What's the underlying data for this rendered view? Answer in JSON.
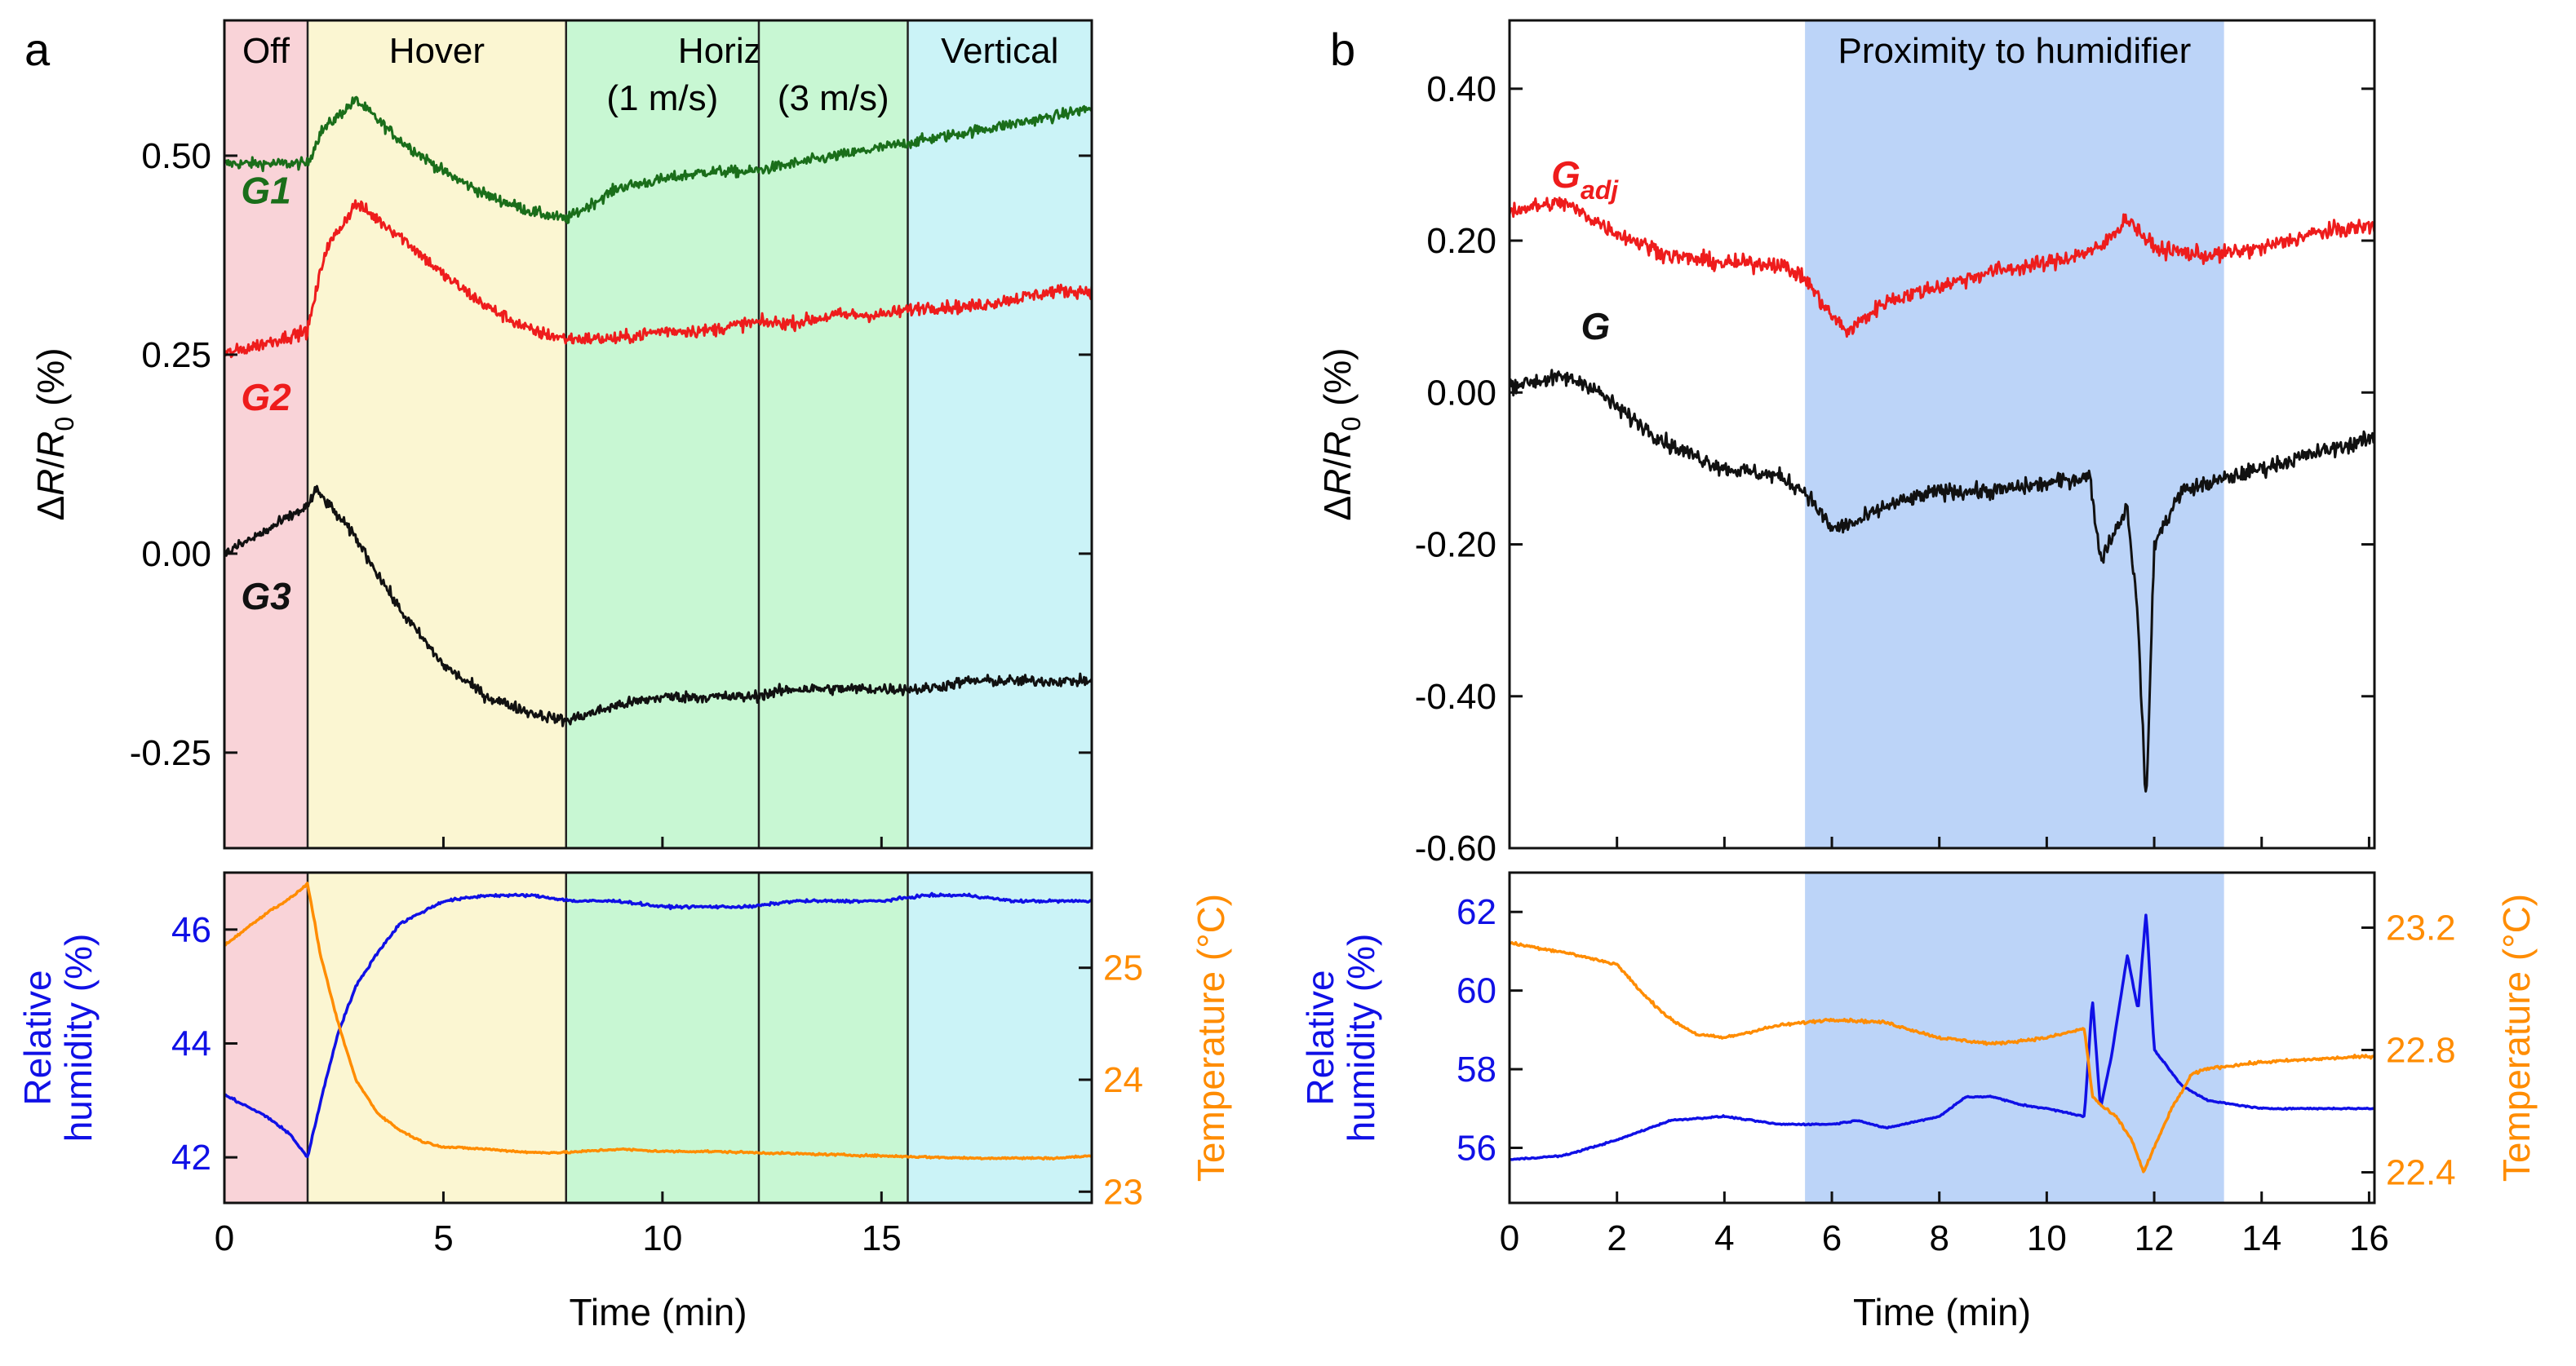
{
  "chart_data": [
    {
      "panel": "a",
      "type": "line",
      "xlabel": "Time (min)",
      "xlim": [
        0,
        19.8
      ],
      "xticks": [
        "0",
        "5",
        "10",
        "15"
      ],
      "xtick_values": [
        0,
        5,
        10,
        15
      ],
      "top": {
        "ylabel_parts": [
          "Δ",
          "R",
          "/",
          "R",
          "0",
          " (%)"
        ],
        "ylim": [
          -0.37,
          0.67
        ],
        "yticks": [
          "-0.25",
          "0.00",
          "0.25",
          "0.50"
        ],
        "ytick_values": [
          -0.25,
          0.0,
          0.25,
          0.5
        ],
        "regions": [
          {
            "label": "Off",
            "start": 0,
            "end": 1.9,
            "color": "#f9d3d8"
          },
          {
            "label": "Hover",
            "start": 1.9,
            "end": 7.8,
            "color": "#fbf6d2"
          },
          {
            "label": "Horizontal",
            "sublabel": "(1 m/s)",
            "start": 7.8,
            "end": 12.2,
            "color": "#c8f7d3"
          },
          {
            "label": "",
            "sublabel": "(3 m/s)",
            "start": 12.2,
            "end": 15.6,
            "color": "#c8f7d3"
          },
          {
            "label": "Vertical",
            "start": 15.6,
            "end": 19.8,
            "color": "#cbf3f7"
          }
        ],
        "series": [
          {
            "name": "G1",
            "color": "#1a6e1a",
            "noise": 0.012,
            "label_pos": [
              0.95,
              0.44
            ],
            "x": [
              0,
              1.9,
              2.2,
              3.0,
              4.0,
              5.0,
              6.0,
              7.0,
              7.8,
              9.0,
              10.0,
              11.0,
              12.0,
              13.0,
              14.0,
              15.0,
              16.0,
              17.0,
              18.0,
              19.0,
              19.8
            ],
            "y": [
              0.49,
              0.49,
              0.53,
              0.57,
              0.52,
              0.48,
              0.45,
              0.43,
              0.42,
              0.46,
              0.47,
              0.48,
              0.48,
              0.49,
              0.5,
              0.51,
              0.52,
              0.53,
              0.54,
              0.55,
              0.56
            ]
          },
          {
            "name": "G2",
            "color": "#ee1c1c",
            "noise": 0.014,
            "label_pos": [
              0.95,
              0.18
            ],
            "x": [
              0,
              1.9,
              2.3,
              3.0,
              4.0,
              5.0,
              6.0,
              7.0,
              7.8,
              9.0,
              10.0,
              11.0,
              12.0,
              13.0,
              14.0,
              15.0,
              16.0,
              17.0,
              18.0,
              19.0,
              19.8
            ],
            "y": [
              0.25,
              0.28,
              0.38,
              0.44,
              0.4,
              0.35,
              0.31,
              0.28,
              0.27,
              0.27,
              0.28,
              0.28,
              0.29,
              0.29,
              0.3,
              0.3,
              0.31,
              0.31,
              0.32,
              0.33,
              0.33
            ]
          },
          {
            "name": "G3",
            "color": "#111111",
            "noise": 0.012,
            "label_pos": [
              0.95,
              -0.07
            ],
            "x": [
              0,
              1.0,
              1.9,
              2.1,
              3.0,
              4.0,
              5.0,
              6.0,
              7.0,
              7.8,
              9.0,
              10.0,
              11.0,
              12.0,
              13.0,
              14.0,
              15.0,
              16.0,
              17.0,
              18.0,
              19.0,
              19.8
            ],
            "y": [
              0.0,
              0.03,
              0.06,
              0.08,
              0.02,
              -0.07,
              -0.14,
              -0.18,
              -0.2,
              -0.21,
              -0.19,
              -0.18,
              -0.18,
              -0.18,
              -0.17,
              -0.17,
              -0.17,
              -0.17,
              -0.16,
              -0.16,
              -0.16,
              -0.16
            ]
          }
        ],
        "annotations": []
      },
      "bottom": {
        "ylabel_left": [
          "Relative",
          "humidity (%)"
        ],
        "ylabel_right": "Temperature (°C)",
        "ylim_left": [
          41.2,
          47.0
        ],
        "yticks_left": [
          "42",
          "44",
          "46"
        ],
        "ytick_values_left": [
          42,
          44,
          46
        ],
        "ylim_right": [
          22.9,
          25.85
        ],
        "yticks_right": [
          "23",
          "24",
          "25"
        ],
        "ytick_values_right": [
          23,
          24,
          25
        ],
        "regions": [
          {
            "start": 0,
            "end": 1.9,
            "color": "#f9d3d8"
          },
          {
            "start": 1.9,
            "end": 7.8,
            "color": "#fbf6d2"
          },
          {
            "start": 7.8,
            "end": 12.2,
            "color": "#c8f7d3"
          },
          {
            "start": 12.2,
            "end": 15.6,
            "color": "#c8f7d3"
          },
          {
            "start": 15.6,
            "end": 19.8,
            "color": "#cbf3f7"
          }
        ],
        "series": [
          {
            "name": "Relative humidity",
            "axis": "left",
            "color": "#1010e6",
            "noise": 0.04,
            "x": [
              0,
              0.5,
              1.0,
              1.5,
              1.9,
              2.2,
              2.6,
              3.0,
              3.5,
              4.0,
              4.5,
              5.0,
              6.0,
              7.0,
              8.0,
              9.0,
              10.0,
              11.0,
              12.0,
              13.0,
              14.0,
              15.0,
              16.0,
              17.0,
              18.0,
              19.0,
              19.8
            ],
            "y": [
              43.1,
              42.9,
              42.7,
              42.4,
              42.0,
              43.0,
              44.2,
              45.0,
              45.6,
              46.1,
              46.3,
              46.5,
              46.6,
              46.6,
              46.5,
              46.5,
              46.4,
              46.4,
              46.4,
              46.5,
              46.5,
              46.5,
              46.6,
              46.6,
              46.5,
              46.5,
              46.5
            ]
          },
          {
            "name": "Temperature",
            "axis": "right",
            "color": "#ff8c00",
            "noise": 0.015,
            "x": [
              0,
              0.5,
              1.0,
              1.5,
              1.9,
              2.2,
              2.6,
              3.0,
              3.5,
              4.0,
              4.5,
              5.0,
              6.0,
              7.0,
              7.8,
              9.0,
              10.0,
              11.0,
              12.0,
              13.0,
              14.0,
              15.0,
              16.0,
              17.0,
              18.0,
              19.0,
              19.8
            ],
            "y": [
              25.2,
              25.35,
              25.5,
              25.62,
              25.75,
              25.1,
              24.5,
              24.0,
              23.7,
              23.55,
              23.45,
              23.4,
              23.38,
              23.35,
              23.35,
              23.38,
              23.36,
              23.36,
              23.35,
              23.34,
              23.33,
              23.32,
              23.31,
              23.3,
              23.3,
              23.3,
              23.32
            ]
          }
        ]
      }
    },
    {
      "panel": "b",
      "type": "line",
      "xlabel": "Time (min)",
      "xlim": [
        0,
        16.1
      ],
      "xticks": [
        "0",
        "2",
        "4",
        "6",
        "8",
        "10",
        "12",
        "14",
        "16"
      ],
      "xtick_values": [
        0,
        2,
        4,
        6,
        8,
        10,
        12,
        14,
        16
      ],
      "top": {
        "ylabel_parts": [
          "Δ",
          "R",
          "/",
          "R",
          "0",
          " (%)"
        ],
        "ylim": [
          -0.6,
          0.49
        ],
        "yticks": [
          "-0.60",
          "-0.40",
          "-0.20",
          "0.00",
          "0.20",
          "0.40"
        ],
        "ytick_values": [
          -0.6,
          -0.4,
          -0.2,
          0.0,
          0.2,
          0.4
        ],
        "regions": [
          {
            "label": "Proximity to humidifier",
            "start": 5.5,
            "end": 13.3,
            "color": "#bcd4f8"
          }
        ],
        "series": [
          {
            "name": "G",
            "subscript": "",
            "color": "#111111",
            "noise": 0.018,
            "label_pos": [
              1.6,
              0.07
            ],
            "x": [
              0,
              1.0,
              1.5,
              2.0,
              3.0,
              4.0,
              5.0,
              5.5,
              6.0,
              6.5,
              7.0,
              8.0,
              9.0,
              10.0,
              10.8,
              11.0,
              11.5,
              11.7,
              11.85,
              12.0,
              12.5,
              13.0,
              14.0,
              15.0,
              16.1
            ],
            "y": [
              0.01,
              0.02,
              0.01,
              -0.02,
              -0.07,
              -0.1,
              -0.11,
              -0.13,
              -0.18,
              -0.17,
              -0.15,
              -0.13,
              -0.13,
              -0.12,
              -0.11,
              -0.22,
              -0.15,
              -0.3,
              -0.55,
              -0.2,
              -0.13,
              -0.12,
              -0.1,
              -0.08,
              -0.06
            ]
          },
          {
            "name": "G",
            "subscript": "adj",
            "color": "#ee1c1c",
            "noise": 0.018,
            "label_pos": [
              1.4,
              0.27
            ],
            "x": [
              0,
              1.0,
              2.0,
              3.0,
              4.0,
              5.0,
              5.5,
              6.0,
              6.3,
              7.0,
              8.0,
              9.0,
              10.0,
              11.0,
              11.5,
              12.0,
              13.0,
              14.0,
              15.0,
              16.1
            ],
            "y": [
              0.24,
              0.25,
              0.21,
              0.18,
              0.17,
              0.17,
              0.15,
              0.1,
              0.08,
              0.12,
              0.14,
              0.16,
              0.17,
              0.19,
              0.23,
              0.19,
              0.18,
              0.19,
              0.21,
              0.22
            ]
          }
        ],
        "annotations": []
      },
      "bottom": {
        "ylabel_left": [
          "Relative",
          "humidity (%)"
        ],
        "ylabel_right": "Temperature (°C)",
        "ylim_left": [
          54.6,
          63.0
        ],
        "yticks_left": [
          "56",
          "58",
          "60",
          "62"
        ],
        "ytick_values_left": [
          56,
          58,
          60,
          62
        ],
        "ylim_right": [
          22.3,
          23.38
        ],
        "yticks_right": [
          "22.4",
          "22.8",
          "23.2"
        ],
        "ytick_values_right": [
          22.4,
          22.8,
          23.2
        ],
        "regions": [
          {
            "start": 5.5,
            "end": 13.3,
            "color": "#bcd4f8"
          }
        ],
        "series": [
          {
            "name": "Relative humidity",
            "axis": "left",
            "color": "#1010e6",
            "noise": 0.03,
            "x": [
              0,
              1.0,
              2.0,
              3.0,
              4.0,
              5.0,
              6.0,
              6.5,
              7.0,
              8.0,
              8.5,
              9.0,
              9.5,
              10.0,
              10.7,
              10.85,
              11.0,
              11.2,
              11.5,
              11.7,
              11.85,
              12.0,
              12.5,
              13.0,
              14.0,
              15.0,
              16.1
            ],
            "y": [
              55.7,
              55.8,
              56.2,
              56.7,
              56.8,
              56.6,
              56.6,
              56.7,
              56.5,
              56.8,
              57.3,
              57.3,
              57.1,
              57.0,
              56.8,
              59.8,
              57.0,
              58.3,
              60.9,
              59.5,
              62.0,
              58.5,
              57.6,
              57.2,
              57.0,
              57.0,
              57.0
            ]
          },
          {
            "name": "Temperature",
            "axis": "right",
            "color": "#ff8c00",
            "noise": 0.008,
            "x": [
              0,
              1.0,
              2.0,
              2.5,
              3.0,
              3.5,
              4.0,
              5.0,
              6.0,
              7.0,
              8.0,
              9.0,
              10.0,
              10.7,
              10.85,
              11.0,
              11.3,
              11.6,
              11.8,
              12.0,
              12.3,
              12.7,
              13.0,
              14.0,
              15.0,
              16.1
            ],
            "y": [
              23.15,
              23.12,
              23.08,
              22.98,
              22.9,
              22.85,
              22.84,
              22.88,
              22.9,
              22.89,
              22.84,
              22.82,
              22.84,
              22.87,
              22.65,
              22.62,
              22.58,
              22.5,
              22.4,
              22.48,
              22.6,
              22.72,
              22.74,
              22.76,
              22.77,
              22.78
            ]
          }
        ]
      }
    }
  ]
}
